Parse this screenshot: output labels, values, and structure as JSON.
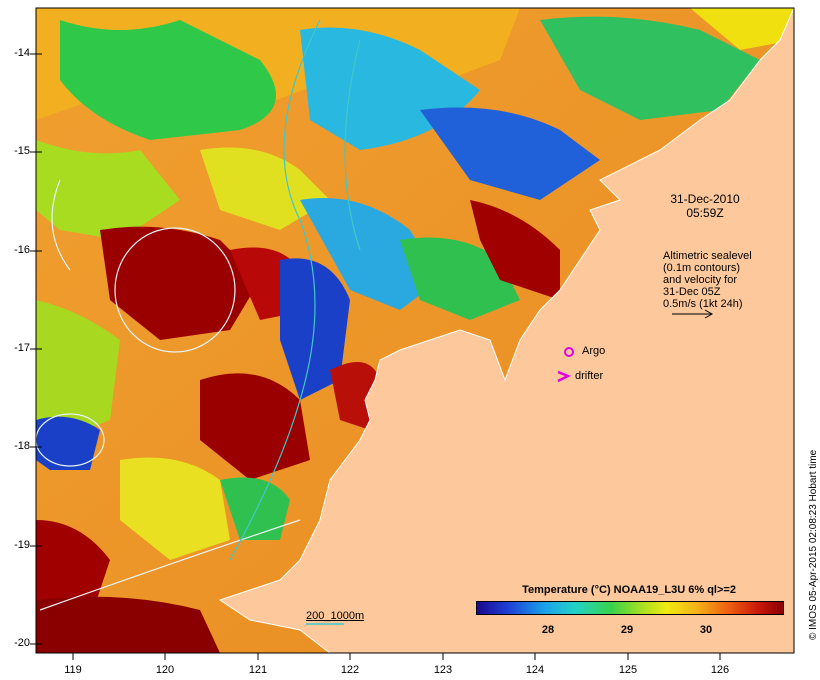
{
  "map": {
    "date_line1": "31-Dec-2010",
    "date_line2": "05:59Z",
    "altimetry_note": [
      "Altimetric sealevel",
      "(0.1m contours)",
      "and velocity for",
      "31-Dec 05Z",
      "0.5m/s (1kt 24h)"
    ],
    "legend_argo": "Argo",
    "legend_drifter": "drifter",
    "depth_contour_label": "200_1000m",
    "colorbar_title": "Temperature (°C) NOAA19_L3U 6% ql>=2",
    "colorbar_ticks": [
      "28",
      "29",
      "30"
    ],
    "credit": "© IMOS 05-Apr-2015 02:08:23 Hobart time",
    "y_ticks": [
      "-14",
      "-15",
      "-16",
      "-17",
      "-18",
      "-19",
      "-20"
    ],
    "x_ticks": [
      "119",
      "120",
      "121",
      "122",
      "123",
      "124",
      "125",
      "126"
    ],
    "colors": {
      "land": "#fdc99c",
      "argo": "#e000e0",
      "drifter": "#e000e0",
      "contour": "#e8f4f8",
      "isobath": "#40c8c8"
    }
  }
}
